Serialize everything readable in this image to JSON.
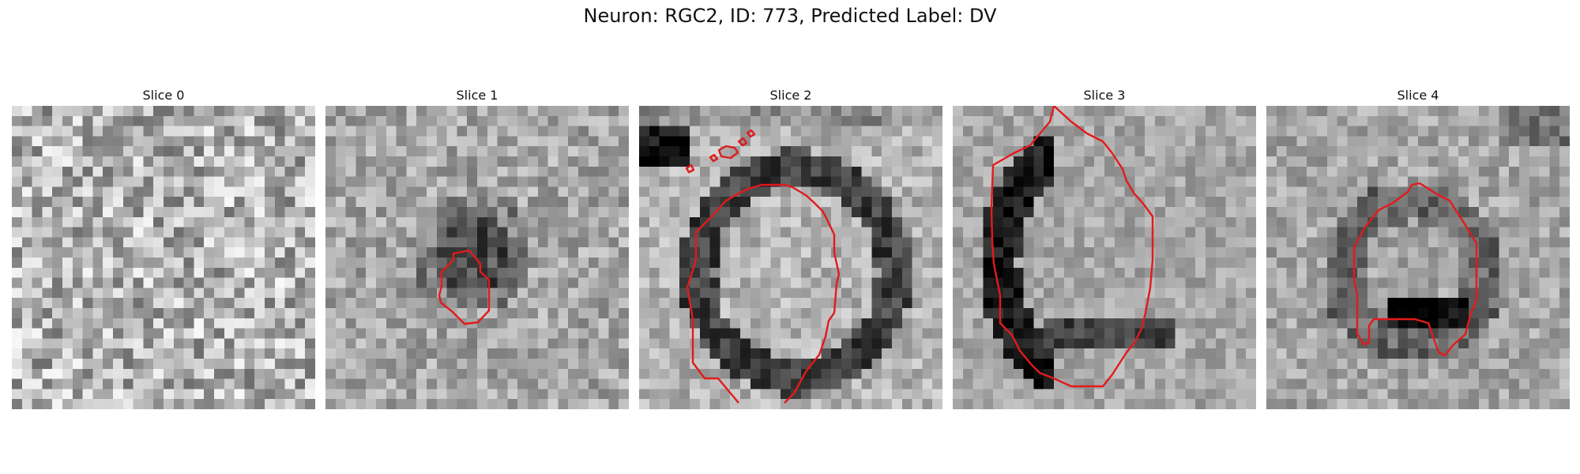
{
  "title": "Neuron: RGC2, ID: 773, Predicted Label: DV",
  "contour_color": "#e31a1c",
  "colormap": "gray",
  "panels": [
    {
      "label": "Slice 0"
    },
    {
      "label": "Slice 1"
    },
    {
      "label": "Slice 2"
    },
    {
      "label": "Slice 3"
    },
    {
      "label": "Slice 4"
    }
  ]
}
